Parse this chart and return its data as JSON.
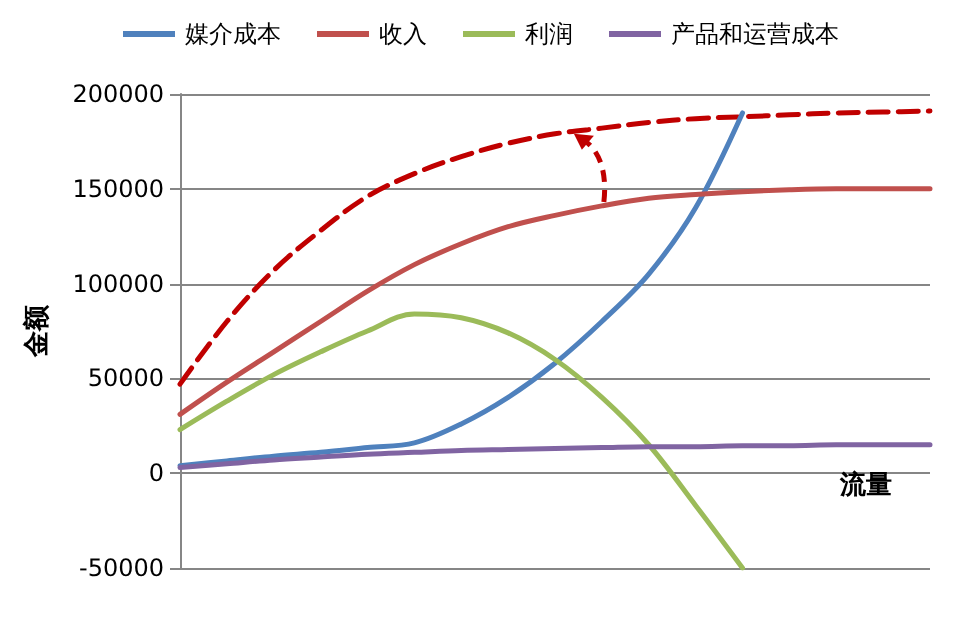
{
  "chart_data": {
    "type": "line",
    "xlabel": "流量",
    "ylabel": "金额",
    "categories": [
      null,
      null,
      null,
      null,
      null,
      null,
      null,
      null,
      null,
      null,
      null,
      null,
      null,
      null,
      null,
      null,
      null
    ],
    "series": [
      {
        "name": "媒介成本",
        "color": "#4f81bd",
        "values": [
          4000,
          6500,
          9000,
          11000,
          13500,
          16000,
          26000,
          40000,
          58000,
          80000,
          105000,
          140000,
          190000,
          null,
          null,
          null,
          null
        ]
      },
      {
        "name": "收入",
        "color": "#c0504d",
        "values": [
          31000,
          48000,
          64000,
          80000,
          96000,
          110000,
          121000,
          130000,
          136000,
          141000,
          145000,
          147000,
          148500,
          149500,
          150000,
          150000,
          150000
        ]
      },
      {
        "name": "利润",
        "color": "#9bbb59",
        "values": [
          23000,
          38000,
          52000,
          64000,
          75000,
          84000,
          82000,
          74000,
          60000,
          40000,
          15000,
          -17000,
          -50000,
          null,
          null,
          null,
          null
        ]
      },
      {
        "name": "产品和运营成本",
        "color": "#8064a2",
        "values": [
          3000,
          5000,
          7000,
          8500,
          10000,
          11000,
          12000,
          12500,
          13000,
          13500,
          14000,
          14000,
          14500,
          14500,
          15000,
          15000,
          15000
        ]
      },
      {
        "color": "#c00000",
        "line_style": "dashed",
        "values": [
          47000,
          80000,
          107000,
          128000,
          146000,
          158000,
          167000,
          174000,
          179000,
          182000,
          185000,
          187000,
          188000,
          189000,
          190000,
          190500,
          191000
        ]
      }
    ],
    "ylim": [
      -50000,
      200000
    ],
    "yticks": [
      -50000,
      0,
      50000,
      100000,
      150000,
      200000
    ],
    "grid": "y",
    "legend": "top",
    "marker": "none",
    "line_style": "solid"
  }
}
